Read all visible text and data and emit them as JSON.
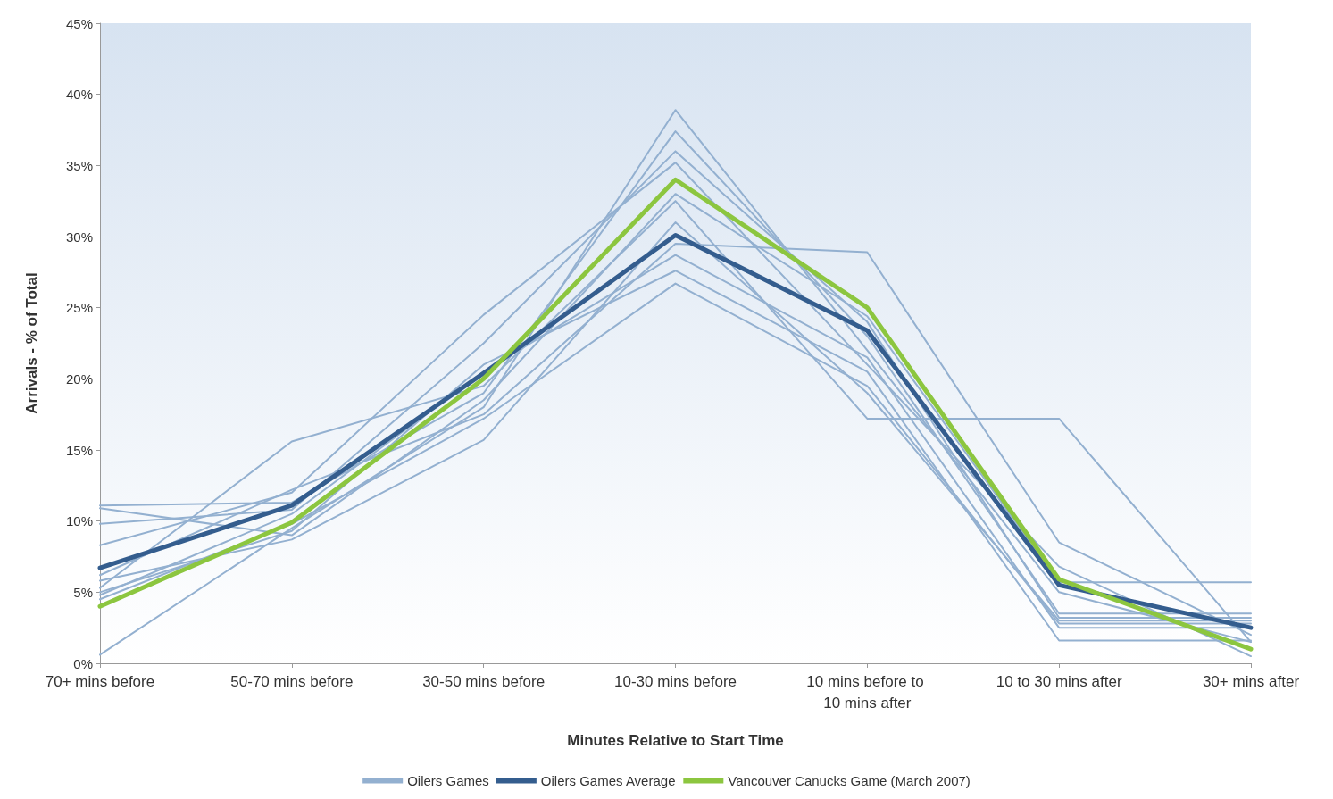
{
  "chart_data": {
    "type": "line",
    "xlabel": "Minutes Relative to Start Time",
    "ylabel": "Arrivals - % of Total",
    "categories": [
      "70+ mins before",
      "50-70 mins before",
      "30-50 mins before",
      "10-30 mins before",
      "10 mins before to 10 mins after",
      "10 to 30 mins after",
      "30+ mins after"
    ],
    "ylim": [
      0,
      45
    ],
    "yticks": [
      {
        "value": 0,
        "label": "0%"
      },
      {
        "value": 5,
        "label": "5%"
      },
      {
        "value": 10,
        "label": "10%"
      },
      {
        "value": 15,
        "label": "15%"
      },
      {
        "value": 20,
        "label": "20%"
      },
      {
        "value": 25,
        "label": "25%"
      },
      {
        "value": 30,
        "label": "30%"
      },
      {
        "value": 35,
        "label": "35%"
      },
      {
        "value": 40,
        "label": "40%"
      },
      {
        "value": 45,
        "label": "45%"
      }
    ],
    "grid": false,
    "legend": "bottom",
    "marker": "none",
    "line_style": "solid",
    "series": [
      {
        "name": "Oilers Games",
        "color": "#93b0d0",
        "values": [
          0.6,
          9.5,
          18,
          38.9,
          22,
          5,
          1.5
        ]
      },
      {
        "color": "#93b0d0",
        "values": [
          11.1,
          11.3,
          19,
          37.4,
          23,
          3.5,
          3.5
        ]
      },
      {
        "color": "#93b0d0",
        "values": [
          9.8,
          10.8,
          22.5,
          36,
          24,
          3.2,
          3.2
        ]
      },
      {
        "color": "#93b0d0",
        "values": [
          8.3,
          12,
          24.5,
          35.2,
          21,
          6.8,
          0.5
        ]
      },
      {
        "color": "#93b0d0",
        "values": [
          5.3,
          15.6,
          19.5,
          32.5,
          17.2,
          17.2,
          1.5
        ]
      },
      {
        "color": "#93b0d0",
        "values": [
          10.9,
          9,
          18.5,
          33,
          24.4,
          5.7,
          5.7
        ]
      },
      {
        "color": "#93b0d0",
        "values": [
          5.8,
          8.7,
          15.7,
          31,
          19,
          3,
          3
        ]
      },
      {
        "color": "#93b0d0",
        "values": [
          6.2,
          12.2,
          17.5,
          29.5,
          28.9,
          8.5,
          2
        ]
      },
      {
        "color": "#93b0d0",
        "values": [
          4.8,
          10.5,
          20.5,
          28.7,
          21.5,
          2.5,
          2.5
        ]
      },
      {
        "color": "#93b0d0",
        "values": [
          5,
          9.3,
          21,
          27.6,
          20.5,
          1.6,
          1.6
        ]
      },
      {
        "color": "#93b0d0",
        "values": [
          4.5,
          9.8,
          17.2,
          26.7,
          19.5,
          2.8,
          2.8
        ]
      },
      {
        "name": "Oilers Games Average",
        "color": "#345d8e",
        "values": [
          6.7,
          11.1,
          20.4,
          30.1,
          23.4,
          5.5,
          2.5
        ]
      },
      {
        "name": "Vancouver Canucks Game (March 2007)",
        "color": "#8cc63f",
        "values": [
          4,
          9.9,
          20,
          34,
          25,
          5.9,
          1
        ]
      }
    ]
  }
}
